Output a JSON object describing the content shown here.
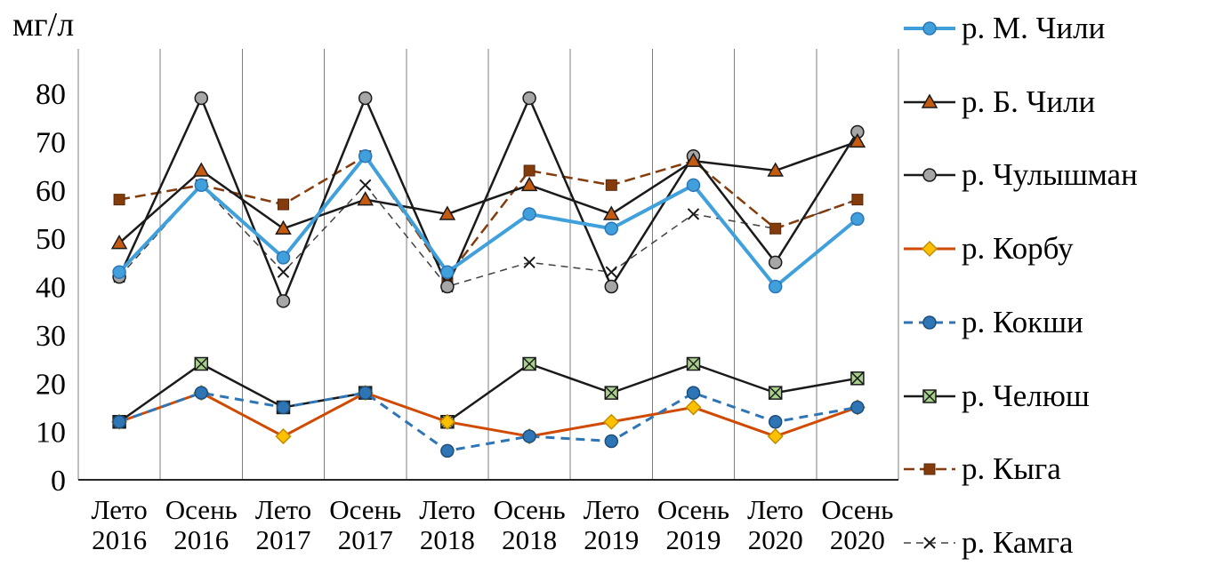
{
  "chart_data": {
    "type": "line",
    "title": "",
    "ylabel": "мг/л",
    "xlabel": "",
    "ylim": [
      0,
      80
    ],
    "y_ticks": [
      0,
      10,
      20,
      30,
      40,
      50,
      60,
      70,
      80
    ],
    "grid": "vertical",
    "legend_position": "right",
    "categories": [
      "Лето 2016",
      "Осень 2016",
      "Лето 2017",
      "Осень 2017",
      "Лето 2018",
      "Осень 2018",
      "Лето 2019",
      "Осень 2019",
      "Лето 2020",
      "Осень 2020"
    ],
    "series": [
      {
        "name": "р. М. Чили",
        "values": [
          43,
          61,
          46,
          67,
          43,
          55,
          52,
          61,
          40,
          54
        ],
        "color": "#3FA0DC",
        "marker": "circle",
        "marker_fill": "#3FA0DC",
        "marker_stroke": "#2E75B6",
        "dash": "",
        "width": 4
      },
      {
        "name": "р. Б. Чили",
        "values": [
          49,
          64,
          52,
          58,
          55,
          61,
          55,
          66,
          64,
          70
        ],
        "color": "#1a1a1a",
        "marker": "triangle",
        "marker_fill": "#C55A11",
        "marker_stroke": "#1a1a1a",
        "dash": "",
        "width": 2.5
      },
      {
        "name": "р. Чулышман",
        "values": [
          42,
          79,
          37,
          79,
          40,
          79,
          40,
          67,
          45,
          72
        ],
        "color": "#1a1a1a",
        "marker": "circle",
        "marker_fill": "#A6A6A6",
        "marker_stroke": "#1a1a1a",
        "dash": "",
        "width": 2.5
      },
      {
        "name": "р. Корбу",
        "values": [
          12,
          18,
          9,
          18,
          12,
          9,
          12,
          15,
          9,
          15
        ],
        "color": "#D04A02",
        "marker": "diamond",
        "marker_fill": "#FFC000",
        "marker_stroke": "#BF8F00",
        "dash": "",
        "width": 3
      },
      {
        "name": "р. Кокши",
        "values": [
          12,
          18,
          15,
          18,
          6,
          9,
          8,
          18,
          12,
          15
        ],
        "color": "#2E75B6",
        "marker": "circle",
        "marker_fill": "#2E75B6",
        "marker_stroke": "#1F4E79",
        "dash": "10 7",
        "width": 3
      },
      {
        "name": "р. Челюш",
        "values": [
          12,
          24,
          15,
          18,
          12,
          24,
          18,
          24,
          18,
          21
        ],
        "color": "#1a1a1a",
        "marker": "square-x",
        "marker_fill": "#A9D18E",
        "marker_stroke": "#1a1a1a",
        "dash": "",
        "width": 2.5
      },
      {
        "name": "р. Кыга",
        "values": [
          58,
          61,
          57,
          67,
          42,
          64,
          61,
          66,
          52,
          58
        ],
        "color": "#843C0C",
        "marker": "square",
        "marker_fill": "#843C0C",
        "marker_stroke": "#5A2808",
        "dash": "12 6",
        "width": 2.5
      },
      {
        "name": "р. Камга",
        "values": [
          42,
          61,
          43,
          61,
          40,
          45,
          43,
          55,
          52,
          58
        ],
        "color": "#404040",
        "marker": "x",
        "marker_fill": "#1a1a1a",
        "marker_stroke": "#1a1a1a",
        "dash": "8 6",
        "width": 1.5
      }
    ],
    "draw_order": [
      7,
      6,
      2,
      1,
      5,
      3,
      4,
      0
    ]
  }
}
